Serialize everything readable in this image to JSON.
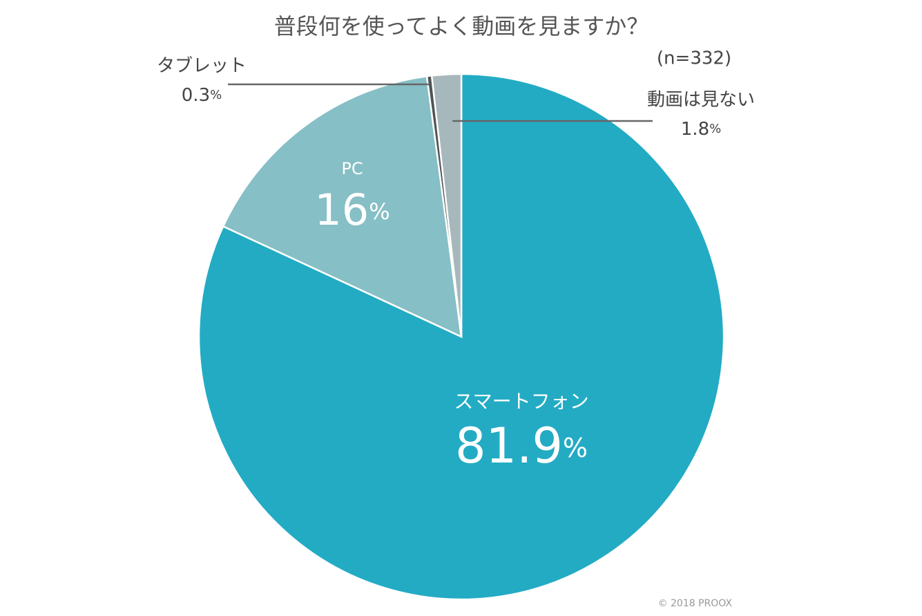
{
  "chart_data": {
    "type": "pie",
    "title": "普段何を使ってよく動画を見ますか？",
    "subtitle": "(n=332)",
    "credit": "© 2018 PROOX",
    "unit": "%",
    "categories": [
      "スマートフォン",
      "PC",
      "タブレット",
      "動画は見ない"
    ],
    "values": [
      81.9,
      16,
      0.3,
      1.8
    ],
    "colors": [
      "#23abc4",
      "#86bfc6",
      "#4f5556",
      "#a7b8bc"
    ]
  }
}
